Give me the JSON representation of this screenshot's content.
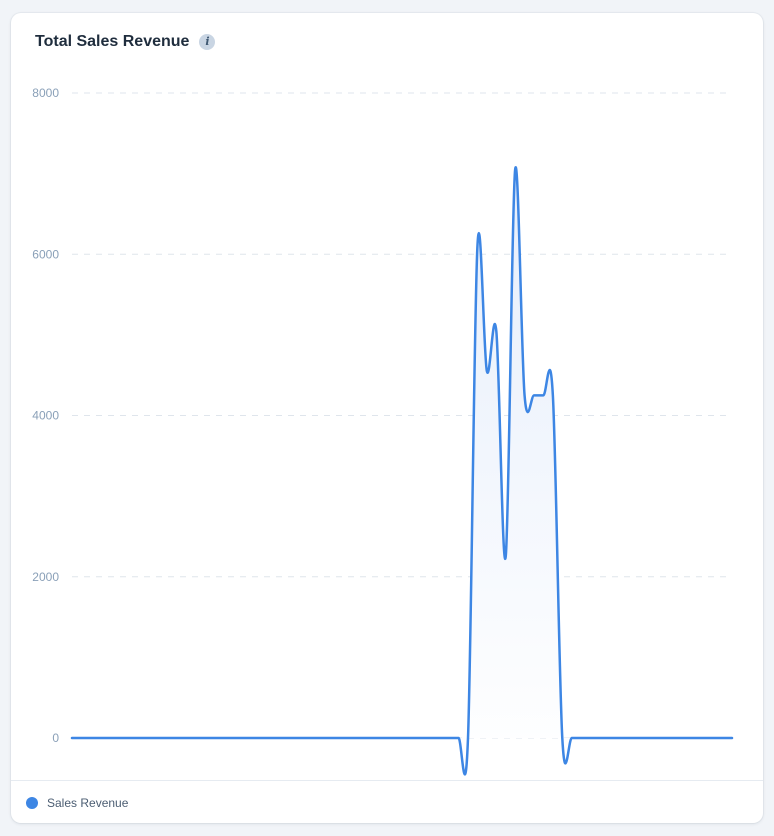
{
  "card": {
    "title": "Total Sales Revenue",
    "info_icon": "info-icon",
    "info_glyph": "i"
  },
  "colors": {
    "line": "#3d86e4",
    "area_top": "#e6eefb",
    "area_bottom": "#ffffff",
    "grid": "#dfe5ec"
  },
  "chart_data": {
    "type": "line",
    "title": "Total Sales Revenue",
    "xlabel": "",
    "ylabel": "",
    "smooth": true,
    "filled_area": true,
    "grid": "horizontal-dashed",
    "x_tick_labels_visible": false,
    "legend_position": "bottom-left",
    "ylim": [
      0,
      8000
    ],
    "y_ticks": [
      "0",
      "2000",
      "4000",
      "6000",
      "8000"
    ],
    "series": [
      {
        "name": "Sales Revenue",
        "values": [
          0,
          0,
          0,
          0,
          0,
          0,
          0,
          0,
          0,
          0,
          0,
          0,
          0,
          0,
          0,
          0,
          0,
          0,
          0,
          0,
          0,
          0,
          0,
          0,
          0,
          0,
          0,
          0,
          0,
          0,
          0,
          0,
          0,
          0,
          0,
          0,
          0,
          0,
          0,
          0,
          0,
          0,
          0,
          6100,
          4550,
          5050,
          2250,
          7050,
          4250,
          4250,
          4250,
          4250,
          0,
          0,
          0,
          0,
          0,
          0,
          0,
          0,
          0,
          0,
          0,
          0,
          0,
          0,
          0,
          0,
          0,
          0,
          0
        ]
      }
    ]
  },
  "legend": {
    "items": [
      {
        "label": "Sales Revenue",
        "color": "#3d86e4"
      }
    ]
  }
}
